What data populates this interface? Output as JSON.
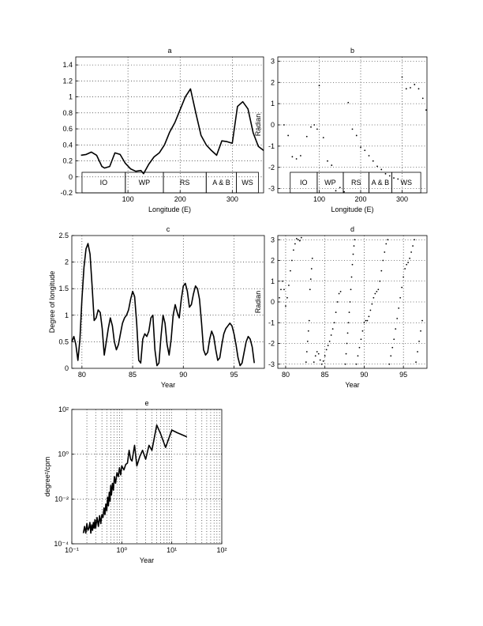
{
  "chart_data": [
    {
      "id": "a",
      "type": "line",
      "title": "a",
      "xlabel": "Longitude (E)",
      "ylabel": "",
      "xlim": [
        0,
        360
      ],
      "ylim": [
        -0.2,
        1.5
      ],
      "xticks": [
        100,
        200,
        300
      ],
      "yticks": [
        -0.2,
        0,
        0.2,
        0.4,
        0.6,
        0.8,
        1,
        1.2,
        1.4
      ],
      "ytick_labels": [
        "-0.2",
        "0",
        "0.2",
        "0.4",
        "0.6",
        "0.8",
        "1",
        "1.2",
        "1.4"
      ],
      "grid": true,
      "regions": [
        {
          "label": "IO",
          "x0": 12,
          "x1": 95
        },
        {
          "label": "WP",
          "x0": 95,
          "x1": 168
        },
        {
          "label": "RS",
          "x0": 168,
          "x1": 250
        },
        {
          "label": "A & B",
          "x0": 250,
          "x1": 308
        },
        {
          "label": "WS",
          "x0": 308,
          "x1": 350
        }
      ],
      "series": [
        {
          "x": [
            10,
            20,
            30,
            40,
            50,
            55,
            65,
            75,
            85,
            95,
            105,
            115,
            125,
            130,
            140,
            150,
            160,
            170,
            180,
            190,
            200,
            210,
            220,
            230,
            240,
            250,
            260,
            270,
            280,
            290,
            300,
            310,
            320,
            330,
            340,
            350,
            360
          ],
          "y": [
            0.27,
            0.28,
            0.31,
            0.27,
            0.13,
            0.11,
            0.13,
            0.3,
            0.28,
            0.17,
            0.1,
            0.07,
            0.08,
            0.04,
            0.16,
            0.25,
            0.3,
            0.4,
            0.56,
            0.68,
            0.84,
            1.0,
            1.1,
            0.8,
            0.52,
            0.4,
            0.33,
            0.27,
            0.45,
            0.44,
            0.42,
            0.88,
            0.94,
            0.85,
            0.55,
            0.38,
            0.33
          ]
        }
      ]
    },
    {
      "id": "b",
      "type": "scatter",
      "title": "b",
      "xlabel": "Longitude (E)",
      "ylabel": "Radian",
      "xlim": [
        0,
        360
      ],
      "ylim": [
        -3.2,
        3.2
      ],
      "xticks": [
        100,
        200,
        300
      ],
      "yticks": [
        -3,
        -2,
        -1,
        0,
        1,
        2,
        3
      ],
      "ytick_labels": [
        "-3",
        "-2",
        "-1",
        "0",
        "1",
        "2",
        "3"
      ],
      "grid": true,
      "regions": [
        {
          "label": "IO",
          "x0": 30,
          "x1": 95
        },
        {
          "label": "WP",
          "x0": 95,
          "x1": 158
        },
        {
          "label": "RS",
          "x0": 158,
          "x1": 220
        },
        {
          "label": "A & B",
          "x0": 220,
          "x1": 275
        },
        {
          "label": "WS",
          "x0": 275,
          "x1": 345
        }
      ],
      "series": [
        {
          "x": [
            15,
            25,
            35,
            45,
            55,
            70,
            80,
            88,
            95,
            100,
            110,
            120,
            130,
            140,
            150,
            160,
            170,
            180,
            190,
            200,
            210,
            220,
            230,
            240,
            250,
            260,
            270,
            280,
            290,
            300,
            310,
            320,
            330,
            340,
            350,
            358
          ],
          "y": [
            0.0,
            -0.5,
            -1.5,
            -1.6,
            -1.45,
            -0.55,
            -0.1,
            0.0,
            -0.2,
            1.85,
            -0.6,
            -1.7,
            -1.9,
            -3.1,
            -2.95,
            -3.15,
            1.05,
            -0.2,
            -0.5,
            -1.05,
            -1.2,
            -1.45,
            -1.7,
            -1.95,
            -2.1,
            -2.3,
            -2.4,
            -2.5,
            -2.55,
            2.25,
            1.7,
            1.75,
            1.9,
            1.7,
            1.25,
            0.7
          ]
        }
      ]
    },
    {
      "id": "c",
      "type": "line",
      "title": "c",
      "xlabel": "Year",
      "ylabel": "Degree of longitude",
      "xlim": [
        79,
        98
      ],
      "ylim": [
        0,
        2.5
      ],
      "xticks": [
        80,
        85,
        90,
        95
      ],
      "yticks": [
        0,
        0.5,
        1,
        1.5,
        2,
        2.5
      ],
      "ytick_labels": [
        "0",
        "0.5",
        "1",
        "1.5",
        "2",
        "2.5"
      ],
      "grid": true,
      "series": [
        {
          "x": [
            79,
            79.2,
            79.4,
            79.6,
            79.8,
            80,
            80.2,
            80.4,
            80.6,
            80.8,
            81,
            81.2,
            81.4,
            81.6,
            81.8,
            82,
            82.2,
            82.4,
            82.6,
            82.8,
            83,
            83.2,
            83.4,
            83.6,
            83.8,
            84,
            84.2,
            84.4,
            84.6,
            84.8,
            85,
            85.2,
            85.4,
            85.6,
            85.8,
            86,
            86.2,
            86.4,
            86.6,
            86.8,
            87,
            87.2,
            87.4,
            87.6,
            87.8,
            88,
            88.2,
            88.4,
            88.6,
            88.8,
            89,
            89.2,
            89.4,
            89.6,
            89.8,
            90,
            90.2,
            90.4,
            90.6,
            90.8,
            91,
            91.2,
            91.4,
            91.6,
            91.8,
            92,
            92.2,
            92.4,
            92.6,
            92.8,
            93,
            93.2,
            93.4,
            93.6,
            93.8,
            94,
            94.2,
            94.4,
            94.6,
            94.8,
            95,
            95.2,
            95.4,
            95.6,
            95.8,
            96,
            96.2,
            96.4,
            96.6,
            96.8,
            97
          ],
          "y": [
            0.5,
            0.6,
            0.45,
            0.15,
            0.55,
            1.3,
            1.9,
            2.25,
            2.35,
            2.15,
            1.55,
            0.9,
            0.95,
            1.1,
            1.05,
            0.75,
            0.25,
            0.5,
            0.75,
            0.95,
            0.8,
            0.5,
            0.35,
            0.45,
            0.65,
            0.85,
            0.95,
            1.0,
            1.1,
            1.3,
            1.45,
            1.35,
            0.85,
            0.15,
            0.1,
            0.55,
            0.65,
            0.6,
            0.7,
            0.95,
            1.0,
            0.35,
            0.05,
            0.1,
            0.6,
            1.0,
            0.85,
            0.45,
            0.25,
            0.55,
            1.0,
            1.2,
            1.05,
            0.95,
            1.3,
            1.55,
            1.6,
            1.45,
            1.15,
            1.2,
            1.4,
            1.55,
            1.5,
            1.3,
            0.85,
            0.35,
            0.25,
            0.3,
            0.55,
            0.7,
            0.6,
            0.35,
            0.15,
            0.2,
            0.45,
            0.65,
            0.75,
            0.8,
            0.85,
            0.8,
            0.65,
            0.45,
            0.2,
            0.05,
            0.1,
            0.3,
            0.5,
            0.6,
            0.55,
            0.4,
            0.1
          ]
        }
      ]
    },
    {
      "id": "d",
      "type": "scatter",
      "title": "d",
      "xlabel": "Year",
      "ylabel": "Radian",
      "xlim": [
        79,
        98
      ],
      "ylim": [
        -3.2,
        3.2
      ],
      "xticks": [
        80,
        85,
        90,
        95
      ],
      "yticks": [
        -3,
        -2,
        -1,
        0,
        1,
        2,
        3
      ],
      "ytick_labels": [
        "-3",
        "-2",
        "-1",
        "0",
        "1",
        "2",
        "3"
      ],
      "grid": true,
      "series": [
        {
          "x": [
            79.2,
            79.4,
            79.6,
            79.8,
            80.0,
            80.2,
            80.4,
            80.6,
            80.8,
            81.0,
            81.2,
            81.4,
            81.6,
            81.8,
            82.0,
            82.6,
            82.7,
            82.8,
            82.9,
            83.0,
            83.1,
            83.2,
            83.3,
            83.4,
            83.6,
            83.8,
            84.0,
            84.2,
            84.4,
            84.6,
            84.8,
            85.0,
            85.2,
            85.4,
            85.6,
            85.8,
            86.0,
            86.2,
            86.4,
            86.6,
            86.8,
            87.0,
            87.6,
            87.7,
            87.8,
            87.9,
            88.0,
            88.1,
            88.2,
            88.3,
            88.4,
            88.5,
            88.6,
            88.7,
            88.8,
            89.0,
            89.2,
            89.4,
            89.6,
            89.8,
            90.0,
            90.2,
            90.4,
            90.6,
            90.8,
            91.0,
            91.2,
            91.4,
            91.6,
            91.8,
            92.0,
            92.2,
            92.4,
            92.6,
            92.8,
            93.0,
            93.2,
            93.4,
            93.6,
            93.8,
            94.0,
            94.2,
            94.4,
            94.6,
            94.8,
            95.0,
            95.2,
            95.4,
            95.6,
            95.8,
            96.0,
            96.2,
            96.4,
            96.6,
            96.8,
            97.0,
            97.2,
            97.4
          ],
          "y": [
            0.2,
            0.6,
            1.0,
            0.6,
            -0.2,
            0.2,
            0.8,
            1.5,
            2.0,
            2.5,
            2.8,
            3.05,
            3.0,
            2.95,
            3.1,
            -2.9,
            -2.4,
            -1.9,
            -1.4,
            -0.9,
            0.6,
            1.1,
            1.6,
            2.1,
            -2.9,
            -2.6,
            -2.4,
            -2.5,
            -2.8,
            -3.0,
            -2.85,
            -2.6,
            -2.3,
            -2.1,
            -1.9,
            -1.6,
            -1.3,
            -1.0,
            -0.5,
            0.0,
            0.4,
            0.5,
            -3.0,
            -2.5,
            -2.0,
            -1.5,
            -1.0,
            -0.5,
            0.0,
            0.6,
            1.2,
            1.8,
            2.3,
            2.7,
            3.0,
            -3.0,
            -2.6,
            -2.2,
            -1.8,
            -1.4,
            -1.0,
            -0.9,
            -0.9,
            -0.7,
            -0.4,
            -0.1,
            0.2,
            0.4,
            0.5,
            0.6,
            1.0,
            1.5,
            2.0,
            2.4,
            2.8,
            3.0,
            -3.0,
            -2.6,
            -2.2,
            -1.8,
            -1.3,
            -0.8,
            -0.3,
            0.2,
            0.7,
            1.2,
            1.6,
            1.8,
            1.9,
            2.1,
            2.4,
            2.7,
            3.0,
            -2.9,
            -2.4,
            -1.9,
            -1.4,
            -0.9
          ]
        }
      ]
    },
    {
      "id": "e",
      "type": "line",
      "title": "e",
      "xlabel": "Year",
      "ylabel": "degree²/cpm",
      "xscale": "log",
      "yscale": "log",
      "xlim": [
        0.1,
        100
      ],
      "ylim": [
        0.0001,
        100
      ],
      "xticks": [
        0.1,
        1,
        10,
        100
      ],
      "xtick_labels": [
        "10⁻¹",
        "10⁰",
        "10¹",
        "10²"
      ],
      "yticks": [
        0.0001,
        0.01,
        1,
        100
      ],
      "ytick_labels": [
        "10⁻⁴",
        "10⁻²",
        "10⁰",
        "10²"
      ],
      "grid": true,
      "series": [
        {
          "x": [
            0.17,
            0.18,
            0.19,
            0.2,
            0.21,
            0.22,
            0.23,
            0.24,
            0.25,
            0.26,
            0.27,
            0.28,
            0.29,
            0.3,
            0.32,
            0.34,
            0.36,
            0.38,
            0.4,
            0.42,
            0.44,
            0.46,
            0.48,
            0.5,
            0.52,
            0.54,
            0.56,
            0.58,
            0.6,
            0.62,
            0.65,
            0.68,
            0.71,
            0.75,
            0.8,
            0.85,
            0.9,
            0.95,
            1.0,
            1.1,
            1.2,
            1.3,
            1.4,
            1.5,
            1.6,
            1.8,
            2.0,
            2.3,
            2.6,
            3.0,
            3.5,
            4.0,
            5.0,
            6.0,
            7.5,
            10.0,
            13.0,
            20.0
          ],
          "y": [
            0.0003,
            0.0006,
            0.0003,
            0.0008,
            0.0004,
            0.0005,
            0.0009,
            0.0003,
            0.0007,
            0.0004,
            0.0009,
            0.0005,
            0.0012,
            0.0005,
            0.0015,
            0.0006,
            0.0018,
            0.0008,
            0.002,
            0.0015,
            0.004,
            0.002,
            0.006,
            0.003,
            0.012,
            0.005,
            0.02,
            0.008,
            0.04,
            0.015,
            0.05,
            0.025,
            0.1,
            0.05,
            0.15,
            0.1,
            0.25,
            0.12,
            0.3,
            0.2,
            0.35,
            0.4,
            1.5,
            0.6,
            0.5,
            2.5,
            0.3,
            0.8,
            1.5,
            0.6,
            2.5,
            1.5,
            20,
            8,
            2.0,
            12,
            9,
            6
          ]
        }
      ]
    }
  ]
}
